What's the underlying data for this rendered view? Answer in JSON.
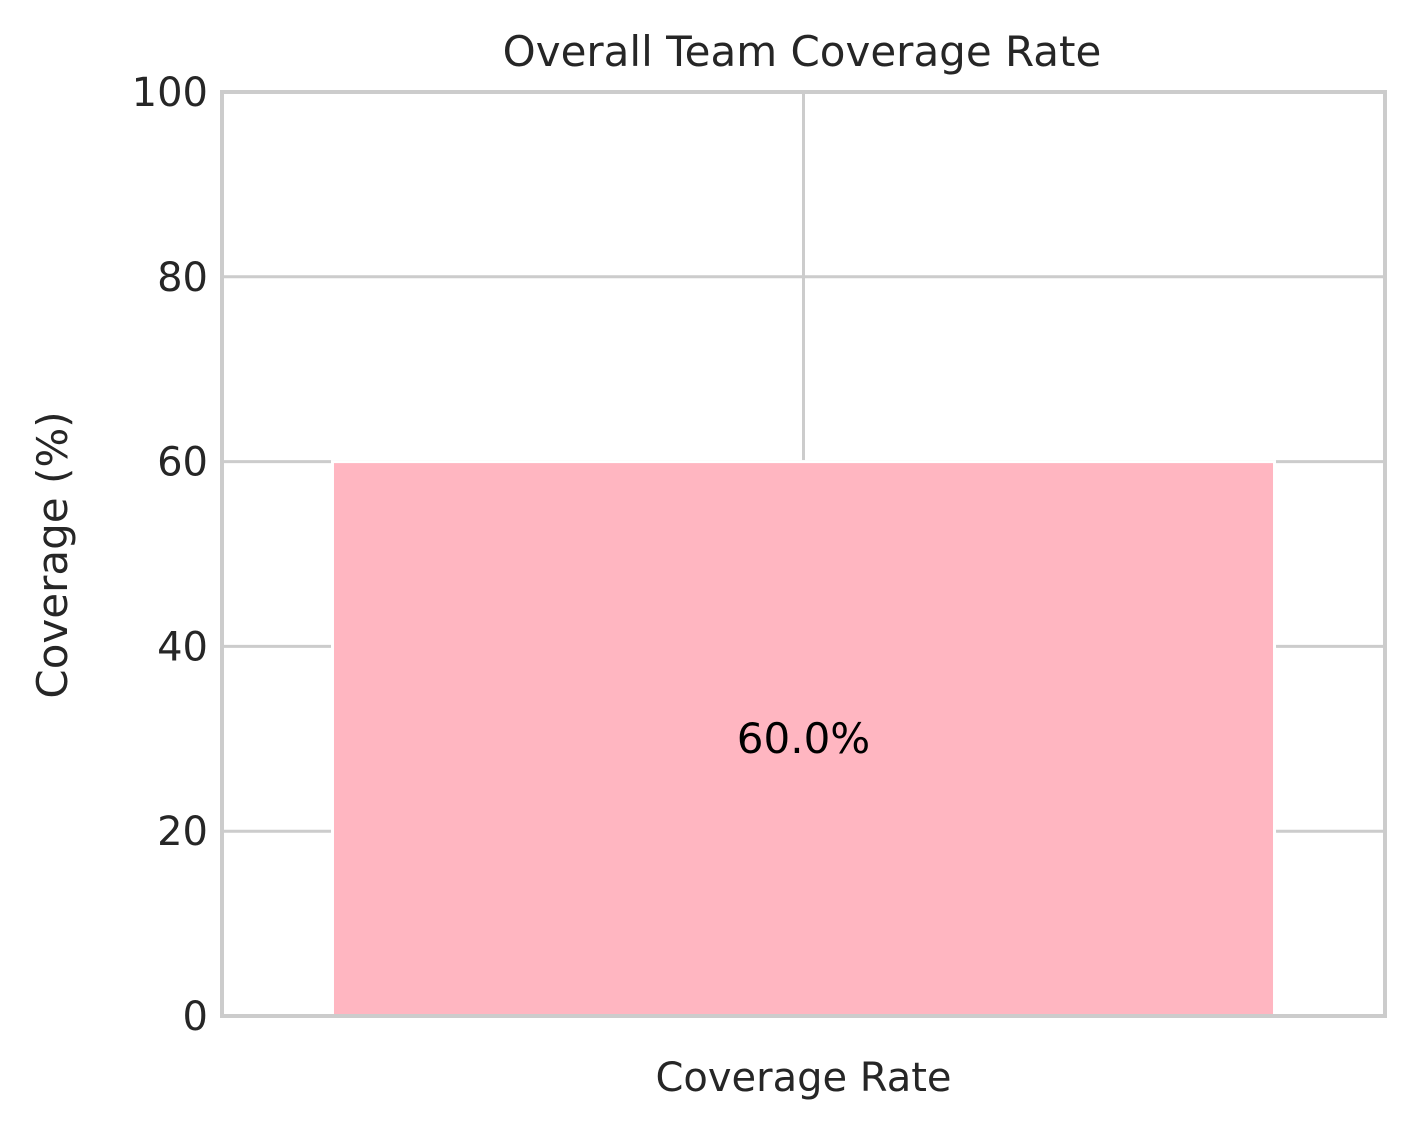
{
  "chart_data": {
    "type": "bar",
    "title": "Overall Team Coverage Rate",
    "xlabel": "",
    "ylabel": "Coverage (%)",
    "categories": [
      "Coverage Rate"
    ],
    "values": [
      60.0
    ],
    "data_labels": [
      "60.0%"
    ],
    "ylim": [
      0,
      100
    ],
    "yticks": [
      0,
      20,
      40,
      60,
      80,
      100
    ],
    "grid": true,
    "legend": "none",
    "colors": {
      "bar": "#ffb6c1",
      "grid": "#cccccc",
      "spine": "#cccccc",
      "text": "#262626",
      "data_label": "#000000"
    }
  }
}
